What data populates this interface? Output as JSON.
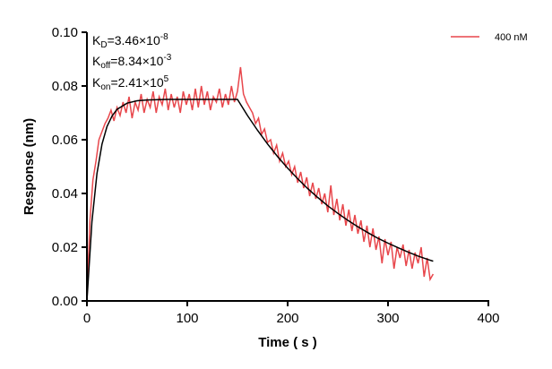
{
  "chart_data": {
    "type": "line",
    "xlabel": "Time ( s )",
    "ylabel": "Response (nm)",
    "xlim": [
      0,
      400
    ],
    "ylim": [
      0,
      0.1
    ],
    "xticks": [
      "0",
      "100",
      "200",
      "300",
      "400"
    ],
    "yticks": [
      "0.00",
      "0.02",
      "0.04",
      "0.06",
      "0.08",
      "0.10"
    ],
    "grid": false,
    "legend_position": "top-right",
    "annotations": {
      "kd": {
        "base": "K",
        "sub": "D",
        "mant": "=3.46×10",
        "exp": "-8"
      },
      "koff": {
        "base": "K",
        "sub": "off",
        "mant": "=8.34×10",
        "exp": "-3"
      },
      "kon": {
        "base": "K",
        "sub": "on",
        "mant": "=2.41×10",
        "exp": "5"
      }
    },
    "series": [
      {
        "name": "400 nM",
        "color": "#e8474c",
        "x": [
          0,
          3,
          6,
          9,
          12,
          15,
          18,
          21,
          24,
          27,
          30,
          33,
          36,
          39,
          42,
          45,
          48,
          51,
          54,
          57,
          60,
          63,
          66,
          69,
          72,
          75,
          78,
          81,
          84,
          87,
          90,
          93,
          96,
          99,
          102,
          105,
          108,
          111,
          114,
          117,
          120,
          123,
          126,
          129,
          132,
          135,
          138,
          141,
          144,
          147,
          150,
          153,
          156,
          159,
          162,
          165,
          168,
          171,
          174,
          177,
          180,
          183,
          186,
          189,
          192,
          195,
          198,
          201,
          204,
          207,
          210,
          213,
          216,
          219,
          222,
          225,
          228,
          231,
          234,
          237,
          240,
          243,
          246,
          249,
          252,
          255,
          258,
          261,
          264,
          267,
          270,
          273,
          276,
          279,
          282,
          285,
          288,
          291,
          294,
          297,
          300,
          303,
          306,
          309,
          312,
          315,
          318,
          321,
          324,
          327,
          330,
          333,
          336,
          339,
          342,
          345
        ],
        "y": [
          0.0,
          0.03,
          0.045,
          0.052,
          0.06,
          0.063,
          0.066,
          0.068,
          0.071,
          0.067,
          0.072,
          0.069,
          0.074,
          0.07,
          0.076,
          0.068,
          0.074,
          0.071,
          0.077,
          0.07,
          0.075,
          0.072,
          0.078,
          0.07,
          0.076,
          0.073,
          0.079,
          0.071,
          0.077,
          0.072,
          0.076,
          0.07,
          0.078,
          0.073,
          0.077,
          0.071,
          0.079,
          0.072,
          0.08,
          0.073,
          0.078,
          0.071,
          0.076,
          0.074,
          0.079,
          0.072,
          0.077,
          0.073,
          0.08,
          0.074,
          0.078,
          0.087,
          0.077,
          0.074,
          0.072,
          0.07,
          0.066,
          0.068,
          0.062,
          0.064,
          0.059,
          0.06,
          0.055,
          0.058,
          0.052,
          0.055,
          0.05,
          0.052,
          0.047,
          0.05,
          0.044,
          0.048,
          0.042,
          0.046,
          0.039,
          0.044,
          0.038,
          0.042,
          0.036,
          0.04,
          0.033,
          0.043,
          0.032,
          0.038,
          0.03,
          0.036,
          0.028,
          0.034,
          0.026,
          0.032,
          0.025,
          0.03,
          0.022,
          0.028,
          0.02,
          0.027,
          0.019,
          0.024,
          0.014,
          0.023,
          0.017,
          0.022,
          0.012,
          0.02,
          0.016,
          0.021,
          0.013,
          0.019,
          0.012,
          0.018,
          0.014,
          0.02,
          0.009,
          0.016,
          0.008,
          0.01
        ]
      },
      {
        "color": "#000000",
        "x": [
          0,
          5,
          10,
          15,
          20,
          25,
          30,
          40,
          50,
          60,
          80,
          100,
          120,
          150,
          160,
          170,
          180,
          190,
          200,
          210,
          220,
          230,
          240,
          250,
          260,
          270,
          280,
          290,
          300,
          310,
          320,
          330,
          340,
          345
        ],
        "y": [
          0,
          0.0295,
          0.0474,
          0.0583,
          0.0649,
          0.0688,
          0.0713,
          0.0736,
          0.0745,
          0.0748,
          0.075,
          0.075,
          0.075,
          0.075,
          0.069,
          0.0635,
          0.0584,
          0.0537,
          0.0494,
          0.0455,
          0.0418,
          0.0385,
          0.0354,
          0.0326,
          0.03,
          0.0276,
          0.0254,
          0.0233,
          0.0215,
          0.0198,
          0.0182,
          0.0167,
          0.0154,
          0.0148
        ]
      }
    ]
  }
}
